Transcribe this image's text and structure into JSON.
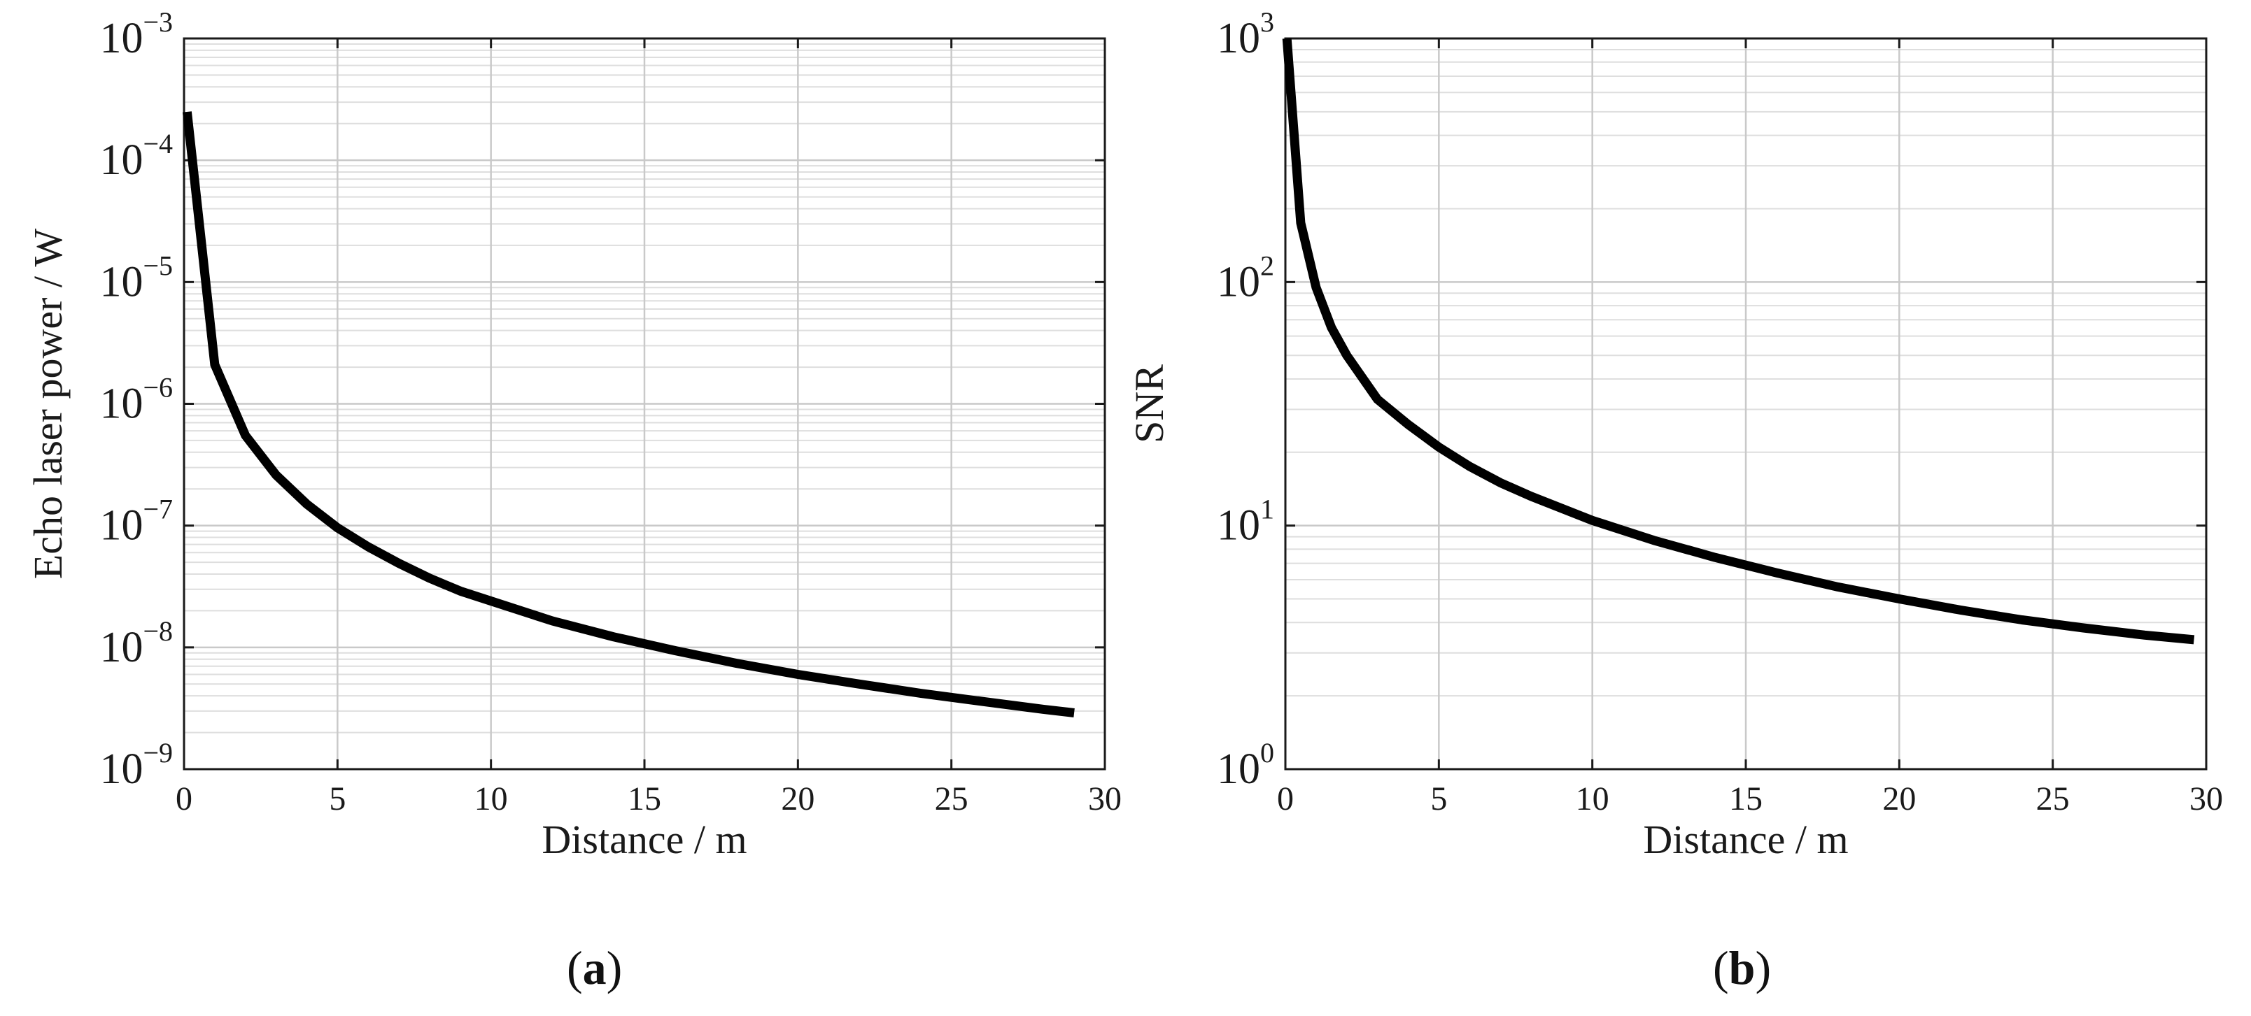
{
  "chart_data": [
    {
      "panel": "a",
      "type": "line",
      "title": "",
      "xlabel": "Distance / m",
      "ylabel": "Echo laser power / W",
      "xlim": [
        0,
        30
      ],
      "ylim": [
        1e-09,
        0.001
      ],
      "yscale": "log",
      "grid": true,
      "minor_grid": true,
      "xticks": [
        0,
        5,
        10,
        15,
        20,
        25,
        30
      ],
      "yticks": [
        {
          "value": 1e-09,
          "base": "10",
          "exp": "−9"
        },
        {
          "value": 1e-08,
          "base": "10",
          "exp": "−8"
        },
        {
          "value": 1e-07,
          "base": "10",
          "exp": "−7"
        },
        {
          "value": 1e-06,
          "base": "10",
          "exp": "−6"
        },
        {
          "value": 1e-05,
          "base": "10",
          "exp": "−5"
        },
        {
          "value": 0.0001,
          "base": "10",
          "exp": "−4"
        },
        {
          "value": 0.001,
          "base": "10",
          "exp": "−3"
        }
      ],
      "series": [
        {
          "color": "#000000",
          "x": [
            0.1,
            1,
            2,
            3,
            4,
            5,
            6,
            7,
            8,
            9,
            10,
            12,
            14,
            16,
            18,
            20,
            22,
            24,
            26,
            28,
            29
          ],
          "y": [
            0.00025,
            2.1e-06,
            5.5e-07,
            2.6e-07,
            1.5e-07,
            9.6e-08,
            6.7e-08,
            4.9e-08,
            3.7e-08,
            2.9e-08,
            2.4e-08,
            1.65e-08,
            1.22e-08,
            9.4e-09,
            7.4e-09,
            6e-09,
            5e-09,
            4.2e-09,
            3.6e-09,
            3.1e-09,
            2.9e-09
          ]
        }
      ]
    },
    {
      "panel": "b",
      "type": "line",
      "title": "",
      "xlabel": "Distance / m",
      "ylabel": "SNR",
      "xlim": [
        0,
        30
      ],
      "ylim": [
        1,
        1000
      ],
      "yscale": "log",
      "grid": true,
      "minor_grid": true,
      "xticks": [
        0,
        5,
        10,
        15,
        20,
        25,
        30
      ],
      "yticks": [
        {
          "value": 1,
          "base": "10",
          "exp": "0"
        },
        {
          "value": 10,
          "base": "10",
          "exp": "1"
        },
        {
          "value": 100,
          "base": "10",
          "exp": "2"
        },
        {
          "value": 1000,
          "base": "10",
          "exp": "3"
        }
      ],
      "series": [
        {
          "color": "#000000",
          "x": [
            0.05,
            0.5,
            1,
            1.5,
            2,
            3,
            4,
            5,
            6,
            7,
            8,
            10,
            12,
            14,
            16,
            18,
            20,
            22,
            24,
            26,
            28,
            29.6
          ],
          "y": [
            1000,
            175,
            95,
            65,
            50,
            33,
            26,
            21,
            17.5,
            15,
            13.2,
            10.5,
            8.7,
            7.4,
            6.4,
            5.6,
            5.0,
            4.5,
            4.1,
            3.8,
            3.55,
            3.4
          ]
        }
      ]
    }
  ],
  "panels": {
    "a_label": "a",
    "b_label": "b"
  },
  "colors": {
    "axis": "#1a1a1a",
    "major_grid": "#c9c9c9",
    "minor_grid": "#dedede",
    "line": "#000000"
  }
}
